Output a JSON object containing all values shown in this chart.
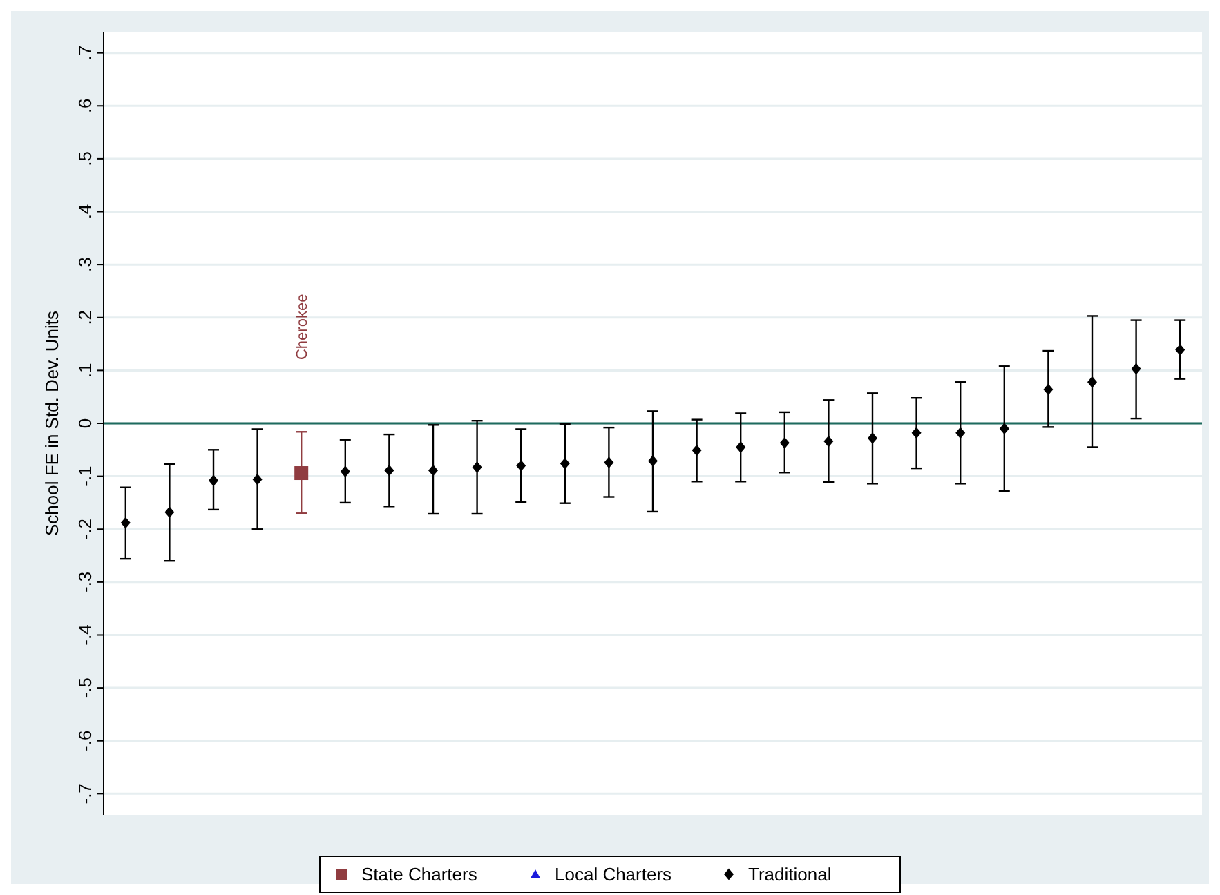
{
  "chart_data": {
    "type": "scatter",
    "ylabel": "School FE in Std. Dev. Units",
    "categories": [
      null,
      null,
      null,
      null,
      null,
      null,
      null,
      null,
      null,
      null,
      null,
      null,
      null,
      null,
      null,
      null,
      null,
      null,
      null,
      null,
      null,
      null,
      null,
      null,
      null
    ],
    "series": [
      {
        "name": "State Charters",
        "color": "#903c40",
        "marker": "square",
        "values": [
          null,
          null,
          null,
          null,
          -0.094,
          null,
          null,
          null,
          null,
          null,
          null,
          null,
          null,
          null,
          null,
          null,
          null,
          null,
          null,
          null,
          null,
          null,
          null,
          null,
          null
        ],
        "errors": [
          null,
          null,
          null,
          null,
          [
            -0.17,
            -0.016
          ],
          null,
          null,
          null,
          null,
          null,
          null,
          null,
          null,
          null,
          null,
          null,
          null,
          null,
          null,
          null,
          null,
          null,
          null,
          null,
          null
        ]
      },
      {
        "name": "Local Charters",
        "color": "#1a1adc",
        "marker": "triangle",
        "values": [
          null,
          null,
          null,
          null,
          null,
          null,
          null,
          null,
          null,
          null,
          null,
          null,
          null,
          null,
          null,
          null,
          null,
          null,
          null,
          null,
          null,
          null,
          null,
          null,
          null
        ]
      },
      {
        "name": "Traditional",
        "color": "#000000",
        "marker": "diamond",
        "values": [
          -0.188,
          -0.168,
          -0.108,
          -0.106,
          null,
          -0.091,
          -0.089,
          -0.089,
          -0.083,
          -0.08,
          -0.076,
          -0.074,
          -0.071,
          -0.051,
          -0.045,
          -0.037,
          -0.034,
          -0.028,
          -0.018,
          -0.018,
          -0.01,
          0.064,
          0.078,
          0.103,
          0.139
        ],
        "errors": [
          [
            -0.256,
            -0.121
          ],
          [
            -0.26,
            -0.077
          ],
          [
            -0.163,
            -0.05
          ],
          [
            -0.2,
            -0.011
          ],
          null,
          [
            -0.15,
            -0.031
          ],
          [
            -0.157,
            -0.021
          ],
          [
            -0.171,
            -0.003
          ],
          [
            -0.171,
            0.005
          ],
          [
            -0.149,
            -0.011
          ],
          [
            -0.151,
            -0.001
          ],
          [
            -0.139,
            -0.008
          ],
          [
            -0.167,
            0.023
          ],
          [
            -0.11,
            0.007
          ],
          [
            -0.11,
            0.019
          ],
          [
            -0.093,
            0.021
          ],
          [
            -0.111,
            0.044
          ],
          [
            -0.114,
            0.057
          ],
          [
            -0.085,
            0.048
          ],
          [
            -0.114,
            0.078
          ],
          [
            -0.128,
            0.108
          ],
          [
            -0.007,
            0.137
          ],
          [
            -0.045,
            0.203
          ],
          [
            0.009,
            0.195
          ],
          [
            0.084,
            0.195
          ]
        ]
      }
    ],
    "annotations": [
      "Cherokee"
    ],
    "ref_lines": [
      {
        "axis": "y",
        "value": 0,
        "color": "#1e6b5e"
      }
    ],
    "ylim": [
      -0.74,
      0.74
    ],
    "yticks": [
      {
        "value": -0.7,
        "label": "-.7"
      },
      {
        "value": -0.6,
        "label": "-.6"
      },
      {
        "value": -0.5,
        "label": "-.5"
      },
      {
        "value": -0.4,
        "label": "-.4"
      },
      {
        "value": -0.3,
        "label": "-.3"
      },
      {
        "value": -0.2,
        "label": "-.2"
      },
      {
        "value": -0.1,
        "label": "-.1"
      },
      0,
      {
        "value": 0.1,
        "label": ".1"
      },
      {
        "value": 0.2,
        "label": ".2"
      },
      {
        "value": 0.3,
        "label": ".3"
      },
      {
        "value": 0.4,
        "label": ".4"
      },
      {
        "value": 0.5,
        "label": ".5"
      },
      {
        "value": 0.6,
        "label": ".6"
      },
      {
        "value": 0.7,
        "label": ".7"
      }
    ],
    "grid": "y",
    "legend": "bottom"
  }
}
